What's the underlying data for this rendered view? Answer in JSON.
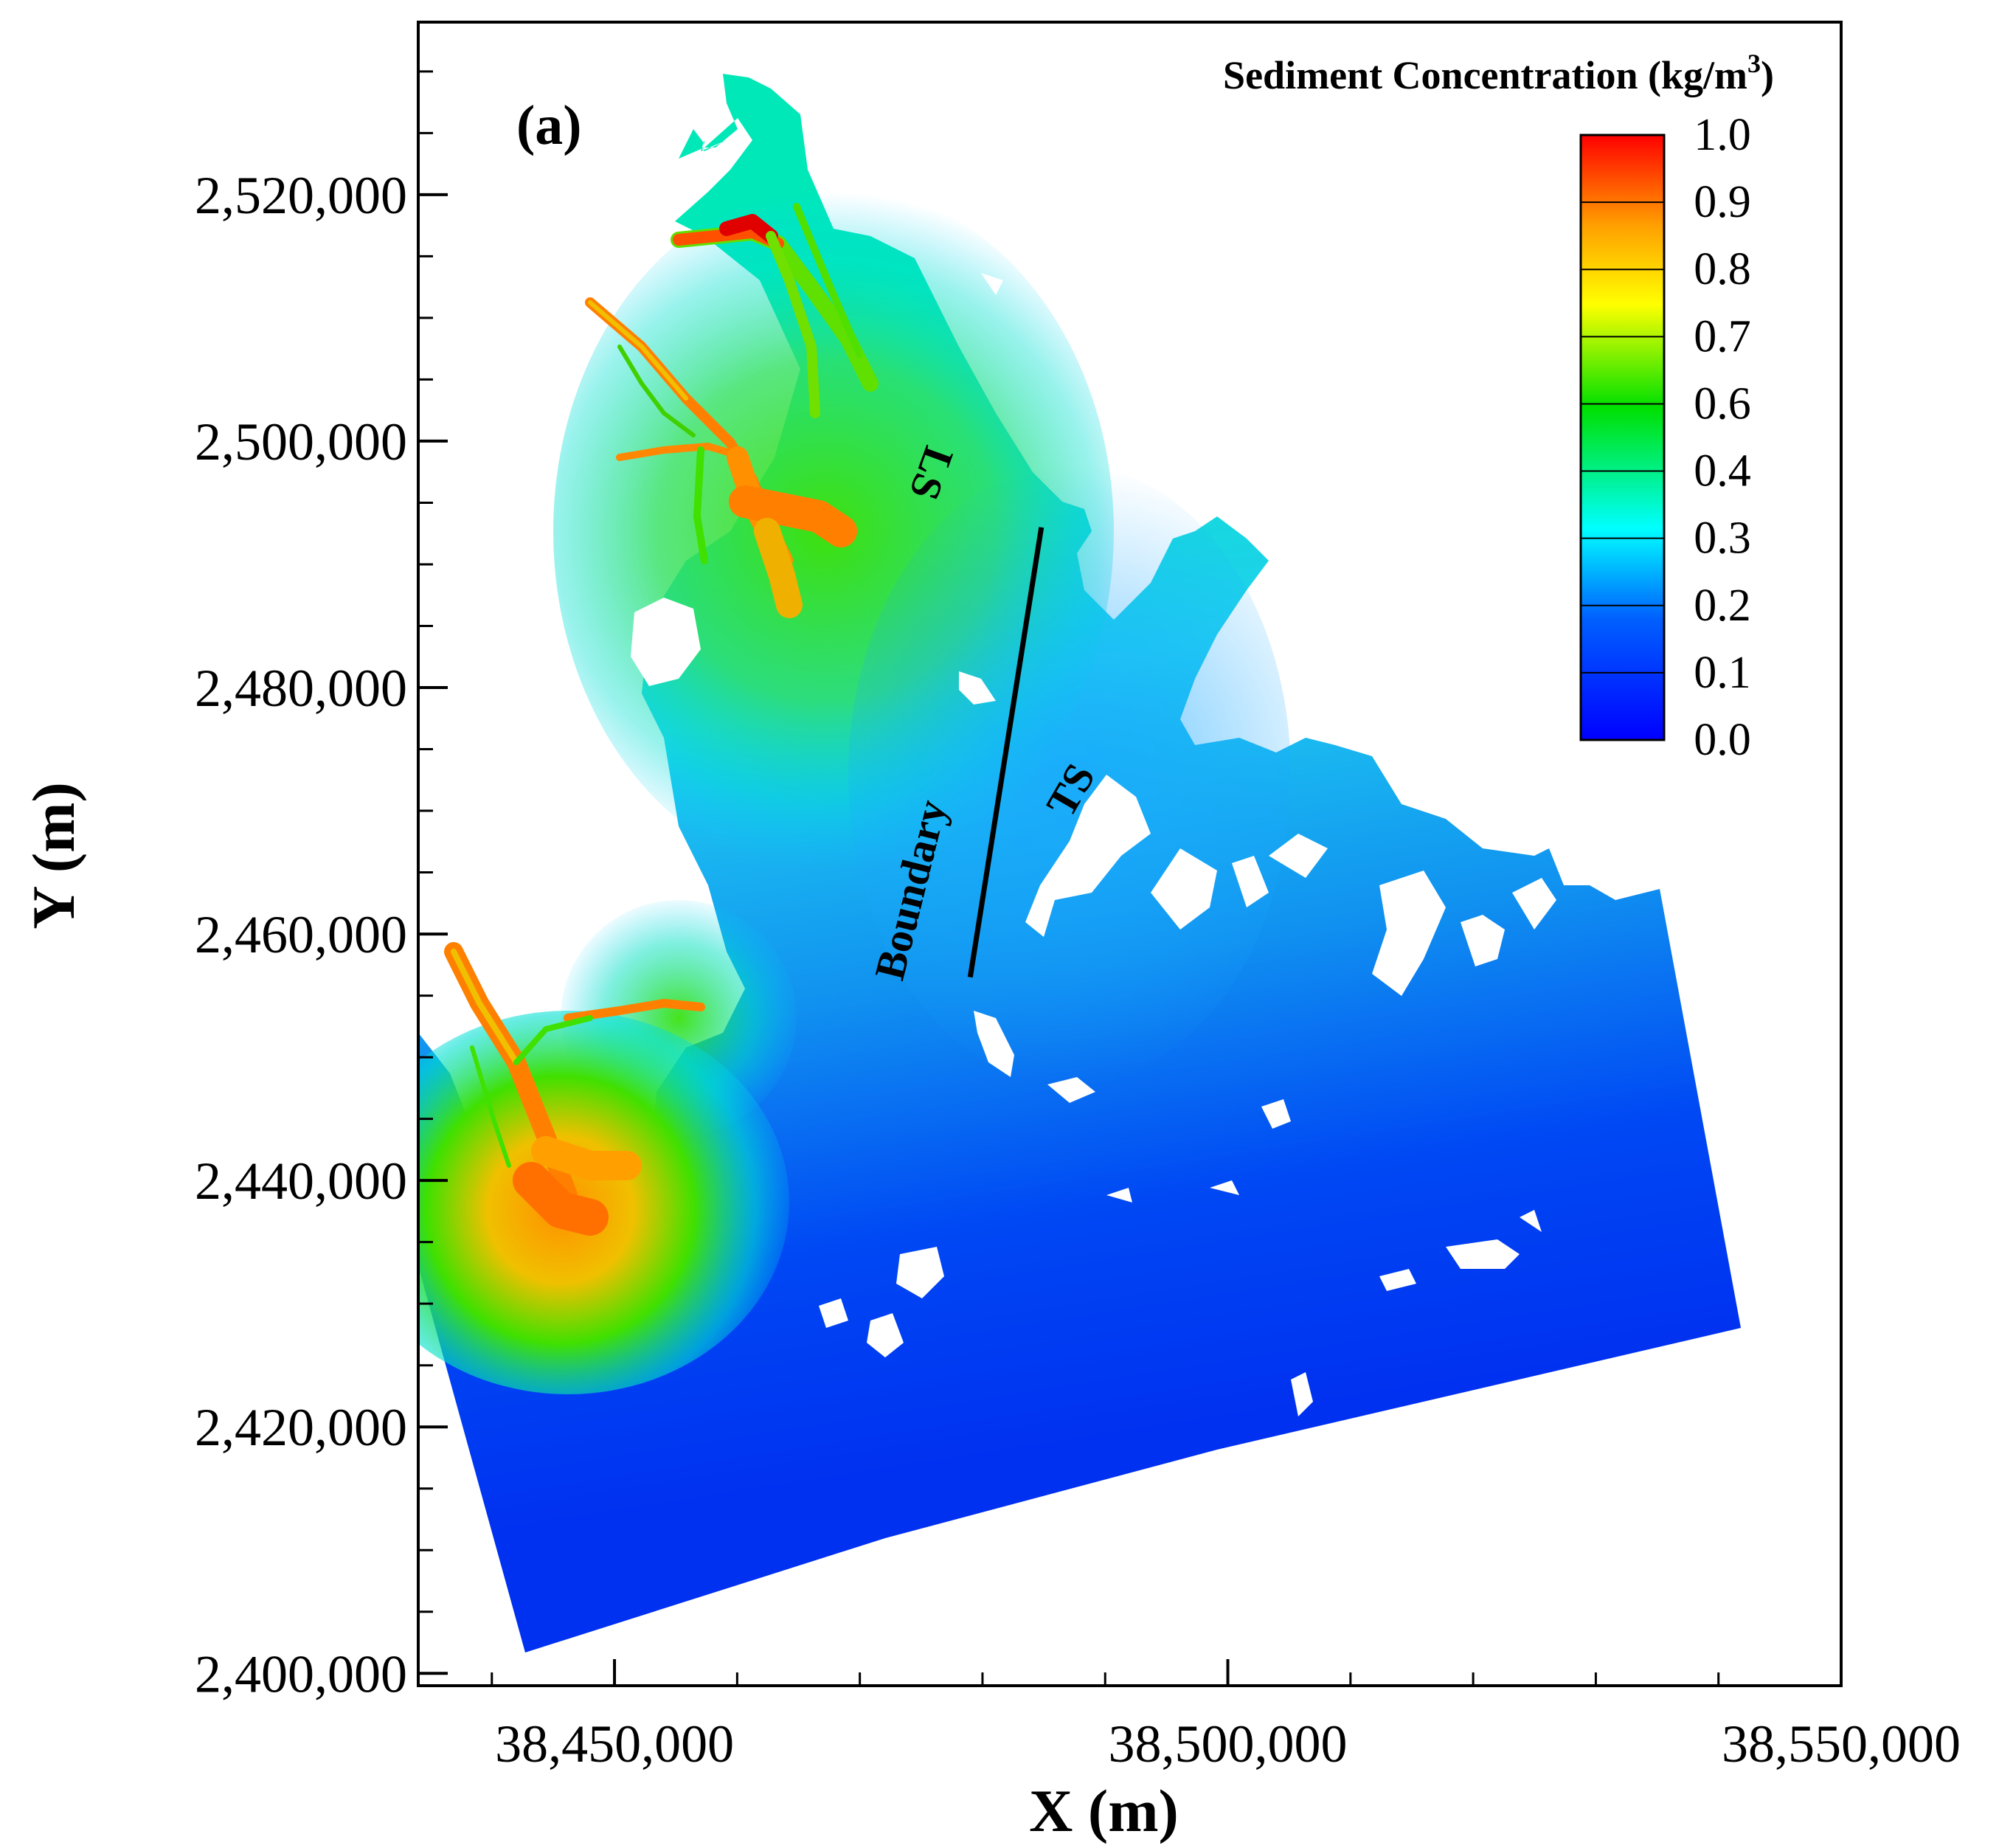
{
  "figure": {
    "panel_label": "(a)"
  },
  "chart_data": {
    "type": "heatmap",
    "title": "",
    "xlabel": "X (m)",
    "ylabel": "Y (m)",
    "xlim": [
      38434000,
      38550000
    ],
    "ylim": [
      2399000,
      2534000
    ],
    "x_ticks": [
      {
        "value": 38450000,
        "label": "38,450,000"
      },
      {
        "value": 38500000,
        "label": "38,500,000"
      },
      {
        "value": 38550000,
        "label": "38,550,000"
      }
    ],
    "y_ticks": [
      {
        "value": 2400000,
        "label": "2,400,000"
      },
      {
        "value": 2420000,
        "label": "2,420,000"
      },
      {
        "value": 2440000,
        "label": "2,440,000"
      },
      {
        "value": 2460000,
        "label": "2,460,000"
      },
      {
        "value": 2480000,
        "label": "2,480,000"
      },
      {
        "value": 2500000,
        "label": "2,500,000"
      },
      {
        "value": 2520000,
        "label": "2,520,000"
      }
    ],
    "x_minor_step": 10000,
    "y_minor_step": 5000,
    "colorbar": {
      "title": "Sediment Concentration (kg/m",
      "title_superscript": "3",
      "title_close": ")",
      "levels": [
        "1.0",
        "0.9",
        "0.8",
        "0.7",
        "0.6",
        "0.4",
        "0.3",
        "0.2",
        "0.1",
        "0.0"
      ],
      "colors": [
        "#ff0000",
        "#ffa000",
        "#ffff00",
        "#00e000",
        "#00ffff",
        "#0060ff",
        "#0000ff"
      ]
    },
    "annotations": [
      {
        "text": "LS",
        "x": 38475500,
        "y": 2497500,
        "rotation": 110
      },
      {
        "text": "TS",
        "x": 38487500,
        "y": 2471500,
        "rotation": -60
      },
      {
        "text": "Boundary",
        "x": 38474500,
        "y": 2463500,
        "rotation": -76
      }
    ],
    "boundary_line": [
      {
        "x": 38479000,
        "y": 2456500
      },
      {
        "x": 38484800,
        "y": 2493000
      }
    ]
  }
}
